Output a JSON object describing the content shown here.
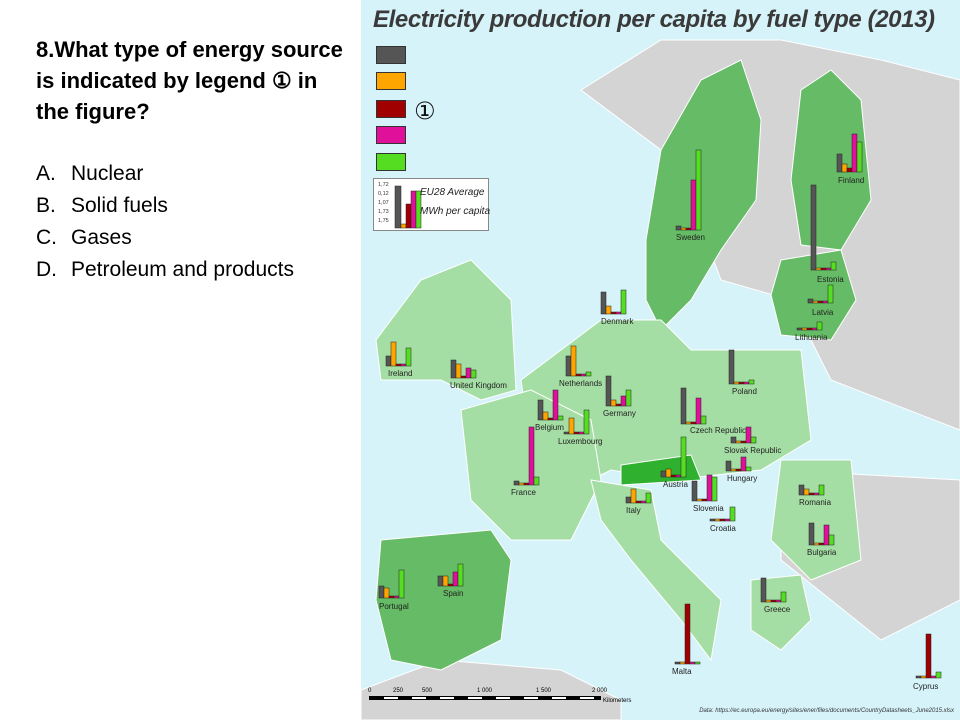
{
  "question": {
    "text": "8.What type of energy source is indicated by legend ① in the figure?",
    "options": [
      {
        "letter": "A.",
        "text": "Nuclear"
      },
      {
        "letter": "B.",
        "text": "Solid fuels"
      },
      {
        "letter": "C.",
        "text": "Gases"
      },
      {
        "letter": "D.",
        "text": "Petroleum and products"
      }
    ]
  },
  "map": {
    "title": "Electricity production per capita by fuel type (2013)",
    "legend_marker": "①",
    "swatch_colors": [
      "#555555",
      "#ffa500",
      "#a00000",
      "#e0109a",
      "#55dd22"
    ],
    "eu_average": {
      "values": [
        "1,72",
        "0,12",
        "1,07",
        "1,73",
        "1,75"
      ],
      "label1": "EU28 Average",
      "label2": "MWh per capita"
    },
    "countries": [
      "Finland",
      "Sweden",
      "Estonia",
      "Latvia",
      "Denmark",
      "Lithuania",
      "Ireland",
      "United Kingdom",
      "Netherlands",
      "Poland",
      "Germany",
      "Belgium",
      "Luxembourg",
      "Czech Republic",
      "Slovak Republic",
      "France",
      "Austria",
      "Hungary",
      "Slovenia",
      "Romania",
      "Italy",
      "Croatia",
      "Bulgaria",
      "Portugal",
      "Spain",
      "Greece",
      "Malta",
      "Cyprus"
    ],
    "scale": {
      "ticks": [
        "0",
        "250",
        "500",
        "1 000",
        "1 500",
        "2 000"
      ],
      "unit": "Kilometers"
    },
    "source": "Data: https://ec.europa.eu/energy/sites/ener/files/documents/CountryDatasheets_June2015.xlsx"
  }
}
